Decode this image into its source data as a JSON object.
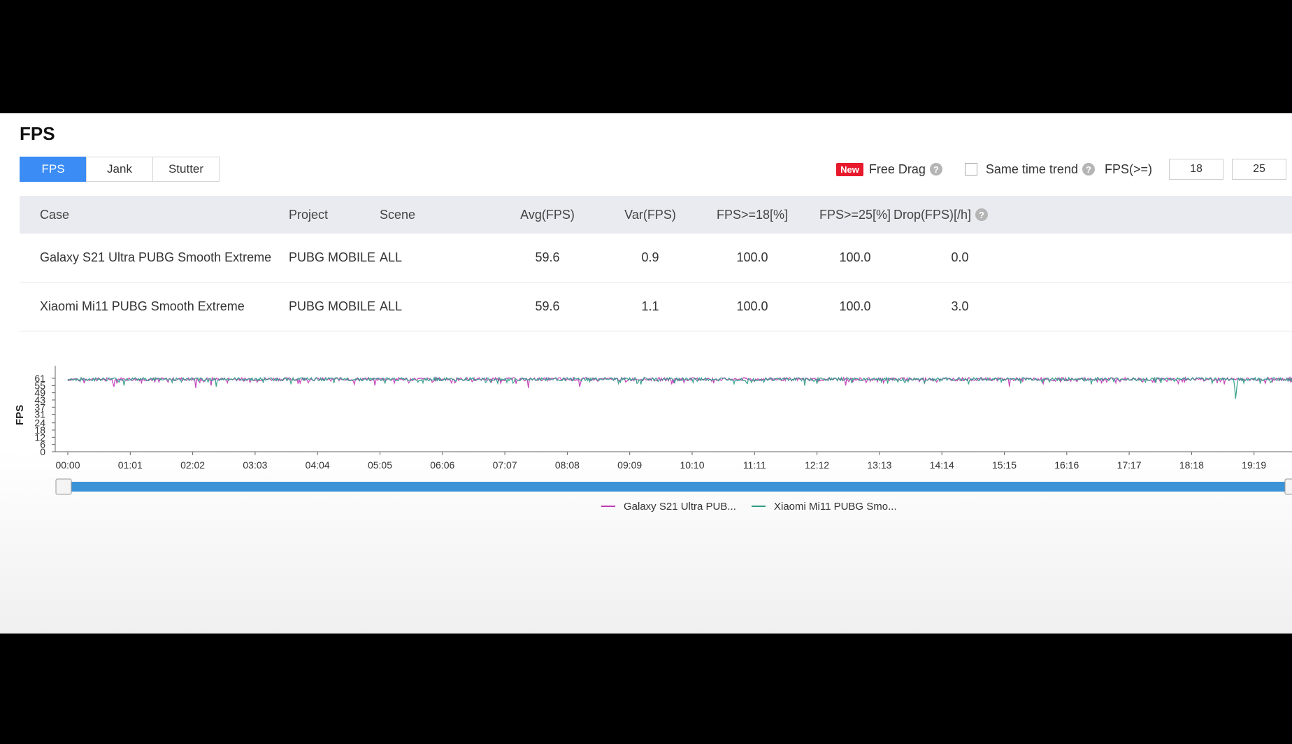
{
  "page": {
    "title": "FPS"
  },
  "tabs": [
    {
      "label": "FPS",
      "active": true
    },
    {
      "label": "Jank",
      "active": false
    },
    {
      "label": "Stutter",
      "active": false
    }
  ],
  "toolbar": {
    "new_badge": "New",
    "free_drag_label": "Free Drag",
    "same_time_trend_label": "Same time trend",
    "same_time_trend_checked": false,
    "fps_threshold_label": "FPS(>=)",
    "threshold_1": "18",
    "threshold_2": "25",
    "help_glyph": "?"
  },
  "table": {
    "headers": [
      "Case",
      "Project",
      "Scene",
      "Avg(FPS)",
      "Var(FPS)",
      "FPS>=18[%]",
      "FPS>=25[%]",
      "Drop(FPS)[/h]"
    ],
    "rows": [
      [
        "Galaxy S21 Ultra PUBG Smooth Extreme",
        "PUBG MOBILE",
        "ALL",
        "59.6",
        "0.9",
        "100.0",
        "100.0",
        "0.0"
      ],
      [
        "Xiaomi Mi11 PUBG Smooth Extreme",
        "PUBG MOBILE",
        "ALL",
        "59.6",
        "1.1",
        "100.0",
        "100.0",
        "3.0"
      ]
    ]
  },
  "chart_data": {
    "type": "line",
    "ylabel": "FPS",
    "xlabel": "",
    "yticks": [
      0,
      6,
      12,
      18,
      24,
      31,
      37,
      43,
      49,
      55,
      61
    ],
    "ylim": [
      0,
      61
    ],
    "xticks": [
      "00:00",
      "01:01",
      "02:02",
      "03:03",
      "04:04",
      "05:05",
      "06:06",
      "07:07",
      "08:08",
      "09:09",
      "10:10",
      "11:11",
      "12:12",
      "13:13",
      "14:14",
      "15:15",
      "16:16",
      "17:17",
      "18:18",
      "19:19"
    ],
    "xlim_seconds": [
      0,
      1230
    ],
    "grid": false,
    "legend_position": "bottom",
    "series": [
      {
        "name": "Galaxy S21 Ultra PUB...",
        "color": "#c23ab8",
        "baseline": 60,
        "dips": [
          {
            "t": 45,
            "fps": 54
          },
          {
            "t": 125,
            "fps": 53
          },
          {
            "t": 140,
            "fps": 55
          },
          {
            "t": 280,
            "fps": 56
          },
          {
            "t": 300,
            "fps": 55
          },
          {
            "t": 450,
            "fps": 53
          },
          {
            "t": 500,
            "fps": 54
          },
          {
            "t": 590,
            "fps": 56
          },
          {
            "t": 760,
            "fps": 55
          },
          {
            "t": 920,
            "fps": 54
          },
          {
            "t": 1130,
            "fps": 56
          },
          {
            "t": 1290,
            "fps": 56
          }
        ]
      },
      {
        "name": "Xiaomi Mi11 PUBG Smo...",
        "color": "#2e9c85",
        "baseline": 60,
        "dips": [
          {
            "t": 55,
            "fps": 55
          },
          {
            "t": 145,
            "fps": 54
          },
          {
            "t": 310,
            "fps": 57
          },
          {
            "t": 560,
            "fps": 56
          },
          {
            "t": 720,
            "fps": 55
          },
          {
            "t": 880,
            "fps": 56
          },
          {
            "t": 1000,
            "fps": 56
          },
          {
            "t": 1140,
            "fps": 54
          },
          {
            "t": 1141,
            "fps": 44
          },
          {
            "t": 1142,
            "fps": 52
          }
        ]
      }
    ]
  }
}
